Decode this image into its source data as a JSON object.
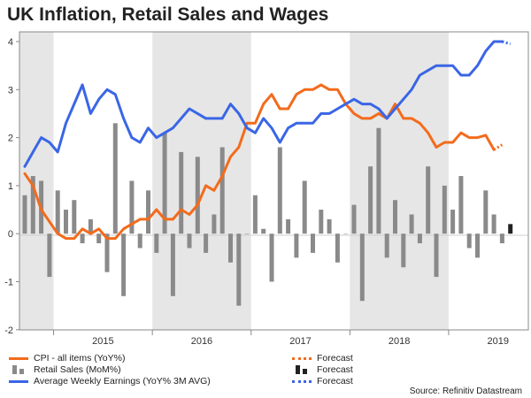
{
  "title": "UK Inflation, Retail Sales and Wages",
  "source": "Source: Refinitiv Datastream",
  "colors": {
    "cpi": "#f36b1c",
    "retail": "#8a8a8a",
    "retail_forecast": "#222222",
    "wages": "#3a66e6",
    "shade": "#e6e6e6"
  },
  "legend": {
    "cpi": "CPI - all items (YoY%)",
    "retail": "Retail Sales (MoM%)",
    "wages": "Average Weekly Earnings (YoY% 3M AVG)",
    "forecast": "Forecast"
  },
  "chart_data": {
    "type": "line+bar",
    "title": "UK Inflation, Retail Sales and Wages",
    "x_start": "2014-09",
    "ylim": [
      -2,
      4.3
    ],
    "yticks": [
      -2,
      -1,
      0,
      1,
      2,
      3,
      4
    ],
    "year_labels": [
      "2015",
      "2016",
      "2017",
      "2018",
      "2019"
    ],
    "shaded_years": [
      "2014",
      "2016",
      "2018"
    ],
    "grid": false,
    "series": [
      {
        "name": "Retail Sales (MoM%)",
        "kind": "bar",
        "values": [
          0.8,
          1.2,
          1.1,
          -0.9,
          0.9,
          0.5,
          0.7,
          -0.2,
          0.3,
          -0.2,
          -0.8,
          2.3,
          -1.3,
          1.1,
          -0.3,
          0.9,
          -0.4,
          2.1,
          -1.3,
          1.7,
          -0.3,
          1.6,
          -0.4,
          0.4,
          1.8,
          -0.6,
          -1.5,
          0.0,
          0.8,
          0.1,
          -1.0,
          1.8,
          0.3,
          -0.5,
          1.1,
          -0.4,
          0.5,
          0.3,
          -0.6,
          0.0,
          0.6,
          -1.4,
          1.4,
          2.2,
          -0.5,
          0.7,
          -0.7,
          0.4,
          -0.2,
          1.4,
          -0.9,
          1.0,
          0.5,
          1.2,
          -0.3,
          -0.5,
          0.9,
          0.4,
          -0.2
        ]
      },
      {
        "name": "Retail Sales forecast",
        "kind": "bar-forecast",
        "index": 59,
        "values": [
          0.2
        ]
      },
      {
        "name": "CPI - all items (YoY%)",
        "kind": "line",
        "values": [
          1.25,
          1.0,
          0.5,
          0.25,
          0.0,
          -0.1,
          -0.1,
          0.1,
          0.0,
          0.1,
          -0.1,
          -0.1,
          0.1,
          0.2,
          0.3,
          0.3,
          0.5,
          0.3,
          0.3,
          0.5,
          0.4,
          0.6,
          1.0,
          0.9,
          1.2,
          1.6,
          1.8,
          2.3,
          2.3,
          2.7,
          2.9,
          2.6,
          2.6,
          2.9,
          3.0,
          3.0,
          3.1,
          3.0,
          3.0,
          2.7,
          2.5,
          2.4,
          2.4,
          2.5,
          2.4,
          2.7,
          2.4,
          2.4,
          2.3,
          2.1,
          1.8,
          1.9,
          1.9,
          2.1,
          2.0,
          2.0,
          2.05,
          1.75
        ]
      },
      {
        "name": "CPI forecast",
        "kind": "line-forecast",
        "start_index": 57,
        "values": [
          1.75,
          1.85
        ]
      },
      {
        "name": "Average Weekly Earnings (YoY% 3M AVG)",
        "kind": "line",
        "values": [
          1.4,
          1.7,
          2.0,
          1.9,
          1.7,
          2.3,
          2.7,
          3.1,
          2.5,
          2.8,
          3.0,
          2.9,
          2.4,
          2.0,
          1.9,
          2.2,
          2.0,
          2.1,
          2.2,
          2.4,
          2.6,
          2.5,
          2.4,
          2.4,
          2.4,
          2.7,
          2.5,
          2.2,
          2.1,
          2.4,
          2.2,
          1.9,
          2.2,
          2.3,
          2.3,
          2.3,
          2.5,
          2.5,
          2.6,
          2.7,
          2.8,
          2.7,
          2.7,
          2.6,
          2.4,
          2.6,
          2.8,
          3.0,
          3.3,
          3.4,
          3.5,
          3.5,
          3.5,
          3.3,
          3.3,
          3.5,
          3.8,
          4.0,
          4.0
        ]
      },
      {
        "name": "Wages forecast",
        "kind": "line-forecast",
        "start_index": 58,
        "values": [
          4.0,
          3.95
        ]
      }
    ]
  }
}
